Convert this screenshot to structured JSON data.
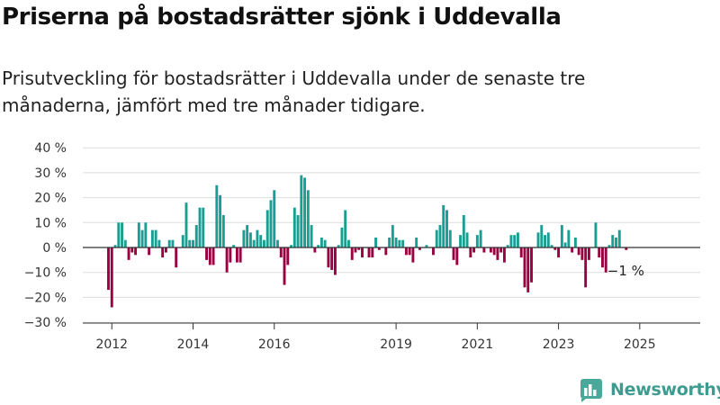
{
  "header": {
    "title": "Priserna på bostadsrätter sjönk i Uddevalla",
    "subtitle": "Prisutveckling för bostadsrätter i Uddevalla under de senaste tre månaderna, jämfört med tre månader tidigare."
  },
  "brand": {
    "name": "Newsworthy",
    "icon": "newsworthy-logo-icon"
  },
  "colors": {
    "positive": "#1a9e93",
    "negative": "#990041",
    "grid": "#dddddd",
    "zero": "#333333",
    "brand": "#3d9b8f"
  },
  "chart_data": {
    "type": "bar",
    "ylim": [
      -30,
      40
    ],
    "y_ticks": [
      {
        "value": 40,
        "label": "40 %"
      },
      {
        "value": 30,
        "label": "30 %"
      },
      {
        "value": 20,
        "label": "20 %"
      },
      {
        "value": 10,
        "label": "10 %"
      },
      {
        "value": 0,
        "label": "0 %"
      },
      {
        "value": -10,
        "label": "−10 %"
      },
      {
        "value": -20,
        "label": "−20 %"
      },
      {
        "value": -30,
        "label": "−30 %"
      }
    ],
    "x_ticks": [
      {
        "date": "2012-01",
        "label": "2012"
      },
      {
        "date": "2014-01",
        "label": "2014"
      },
      {
        "date": "2016-01",
        "label": "2016"
      },
      {
        "date": "2019-01",
        "label": "2019"
      },
      {
        "date": "2021-01",
        "label": "2021"
      },
      {
        "date": "2023-01",
        "label": "2023"
      },
      {
        "date": "2025-01",
        "label": "2025"
      }
    ],
    "start": "2011-12",
    "series": [
      {
        "values": [
          -17,
          -24,
          1,
          10,
          10,
          3,
          -5,
          -2,
          -3,
          10,
          7,
          10,
          -3,
          7,
          7,
          3,
          -4,
          -2,
          3,
          3,
          -8,
          0,
          5,
          18,
          3,
          3,
          9,
          16,
          16,
          -5,
          -7,
          -7,
          25,
          21,
          13,
          -10,
          -6,
          1,
          -6,
          -6,
          7,
          9,
          6,
          3,
          7,
          5,
          3,
          15,
          19,
          23,
          3,
          -4,
          -15,
          -7,
          1,
          16,
          13,
          29,
          28,
          23,
          9,
          -2,
          1,
          4,
          3,
          -8,
          -9,
          -11,
          1,
          8,
          15,
          3,
          -5,
          -2,
          -1,
          -4,
          0,
          -4,
          -4,
          4,
          -1,
          0,
          -3,
          4,
          9,
          4,
          3,
          3,
          -3,
          -3,
          -6,
          4,
          -1,
          0,
          1,
          0,
          -3,
          7,
          9,
          17,
          15,
          7,
          -5,
          -7,
          5,
          13,
          6,
          -4,
          -2,
          5,
          7,
          -2,
          0,
          -2,
          -3,
          -5,
          -2,
          -6,
          1,
          5,
          5,
          6,
          -4,
          -16,
          -18,
          -14,
          0,
          6,
          9,
          5,
          6,
          1,
          -1,
          -4,
          9,
          2,
          7,
          -2,
          4,
          -3,
          -5,
          -16,
          -5,
          0,
          10,
          -4,
          -8,
          -10,
          1,
          5,
          4,
          7,
          0,
          -1
        ]
      }
    ],
    "annotations": [
      {
        "text": "−1 %",
        "value": -1
      }
    ]
  }
}
